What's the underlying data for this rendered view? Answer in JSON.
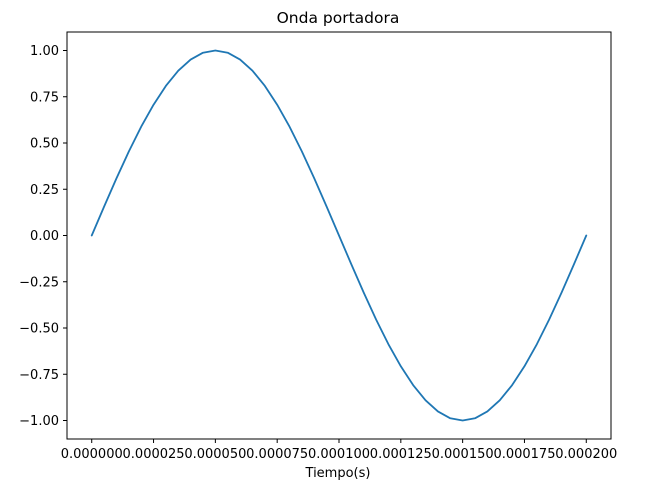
{
  "chart_data": {
    "type": "line",
    "title": "Onda portadora",
    "xlabel": "Tiempo(s)",
    "ylabel": "",
    "xlim": [
      -1e-05,
      0.00021
    ],
    "ylim": [
      -1.1,
      1.1
    ],
    "grid": false,
    "x_ticks": [
      0.0,
      2.5e-05,
      5e-05,
      7.5e-05,
      0.0001,
      0.000125,
      0.00015,
      0.000175,
      0.0002
    ],
    "x_tick_labels": [
      "0.000000",
      "0.000025",
      "0.000050",
      "0.000075",
      "0.000100",
      "0.000125",
      "0.000150",
      "0.000175",
      "0.000200"
    ],
    "y_ticks": [
      1.0,
      0.75,
      0.5,
      0.25,
      0.0,
      -0.25,
      -0.5,
      -0.75,
      -1.0
    ],
    "y_tick_labels": [
      "1.00",
      "0.75",
      "0.50",
      "0.25",
      "0.00",
      "−0.25",
      "−0.50",
      "−0.75",
      "−1.00"
    ],
    "series": [
      {
        "color": "#1f77b4",
        "x": [
          0.0,
          5e-06,
          1e-05,
          1.5e-05,
          2e-05,
          2.5e-05,
          3e-05,
          3.5e-05,
          4e-05,
          4.5e-05,
          5e-05,
          5.5e-05,
          6e-05,
          6.5e-05,
          7e-05,
          7.5e-05,
          8e-05,
          8.5e-05,
          9e-05,
          9.5e-05,
          0.0001,
          0.000105,
          0.00011,
          0.000115,
          0.00012,
          0.000125,
          0.00013,
          0.000135,
          0.00014,
          0.000145,
          0.00015,
          0.000155,
          0.00016,
          0.000165,
          0.00017,
          0.000175,
          0.00018,
          0.000185,
          0.00019,
          0.000195,
          0.0002
        ],
        "y": [
          0.0,
          0.156,
          0.309,
          0.454,
          0.588,
          0.707,
          0.809,
          0.891,
          0.951,
          0.988,
          1.0,
          0.988,
          0.951,
          0.891,
          0.809,
          0.707,
          0.588,
          0.454,
          0.309,
          0.156,
          0.0,
          -0.156,
          -0.309,
          -0.454,
          -0.588,
          -0.707,
          -0.809,
          -0.891,
          -0.951,
          -0.988,
          -1.0,
          -0.988,
          -0.951,
          -0.891,
          -0.809,
          -0.707,
          -0.588,
          -0.454,
          -0.309,
          -0.156,
          0.0
        ]
      }
    ]
  }
}
